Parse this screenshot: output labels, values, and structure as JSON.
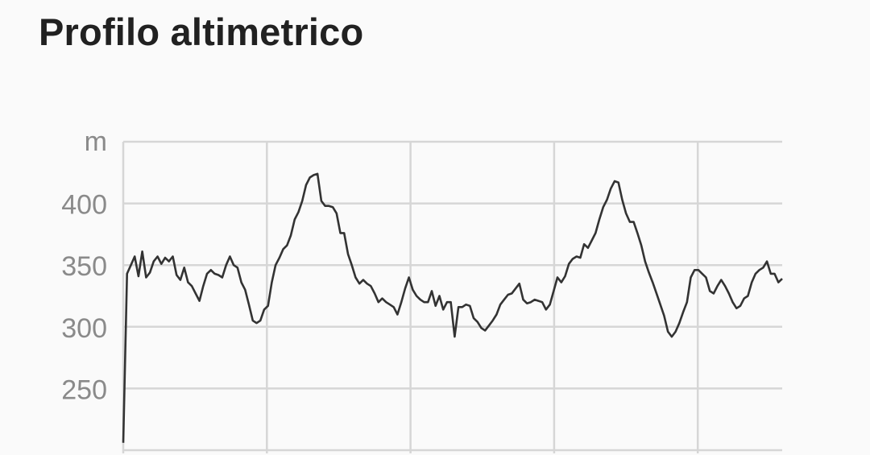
{
  "header": {
    "title": "Profilo altimetrico"
  },
  "chart_data": {
    "type": "line",
    "title": "",
    "xlabel": "",
    "ylabel": "m",
    "ylim": [
      200,
      450
    ],
    "y_ticks": [
      250,
      300,
      350,
      400
    ],
    "y_tick_labels": [
      "250",
      "300",
      "350",
      "400"
    ],
    "grid": true,
    "legend": "none",
    "line_color": "#333333",
    "grid_color": "#d6d6d6",
    "tick_label_color": "#8a8a8a",
    "series": [
      {
        "values": [
          206,
          343,
          350,
          357,
          341,
          361,
          340,
          344,
          353,
          357,
          351,
          356,
          353,
          357,
          342,
          338,
          348,
          336,
          333,
          327,
          321,
          333,
          343,
          346,
          343,
          342,
          340,
          350,
          357,
          350,
          348,
          336,
          330,
          318,
          305,
          303,
          305,
          314,
          317,
          336,
          350,
          356,
          363,
          366,
          374,
          387,
          393,
          402,
          415,
          421,
          423,
          424,
          402,
          398,
          398,
          397,
          392,
          376,
          376,
          359,
          350,
          340,
          335,
          338,
          335,
          333,
          327,
          320,
          323,
          320,
          318,
          316,
          310,
          320,
          331,
          340,
          330,
          325,
          322,
          320,
          320,
          329,
          317,
          325,
          314,
          320,
          320,
          292,
          316,
          316,
          318,
          317,
          307,
          304,
          299,
          297,
          301,
          305,
          310,
          318,
          322,
          326,
          327,
          331,
          335,
          322,
          319,
          320,
          322,
          321,
          320,
          314,
          318,
          329,
          340,
          336,
          341,
          351,
          355,
          357,
          356,
          367,
          364,
          370,
          376,
          387,
          397,
          403,
          412,
          418,
          417,
          403,
          392,
          385,
          385,
          376,
          366,
          353,
          344,
          336,
          327,
          318,
          309,
          296,
          292,
          296,
          303,
          312,
          320,
          340,
          346,
          346,
          343,
          340,
          329,
          327,
          333,
          338,
          333,
          327,
          320,
          315,
          317,
          323,
          325,
          336,
          343,
          346,
          348,
          353,
          343,
          343,
          336,
          339
        ]
      }
    ]
  }
}
